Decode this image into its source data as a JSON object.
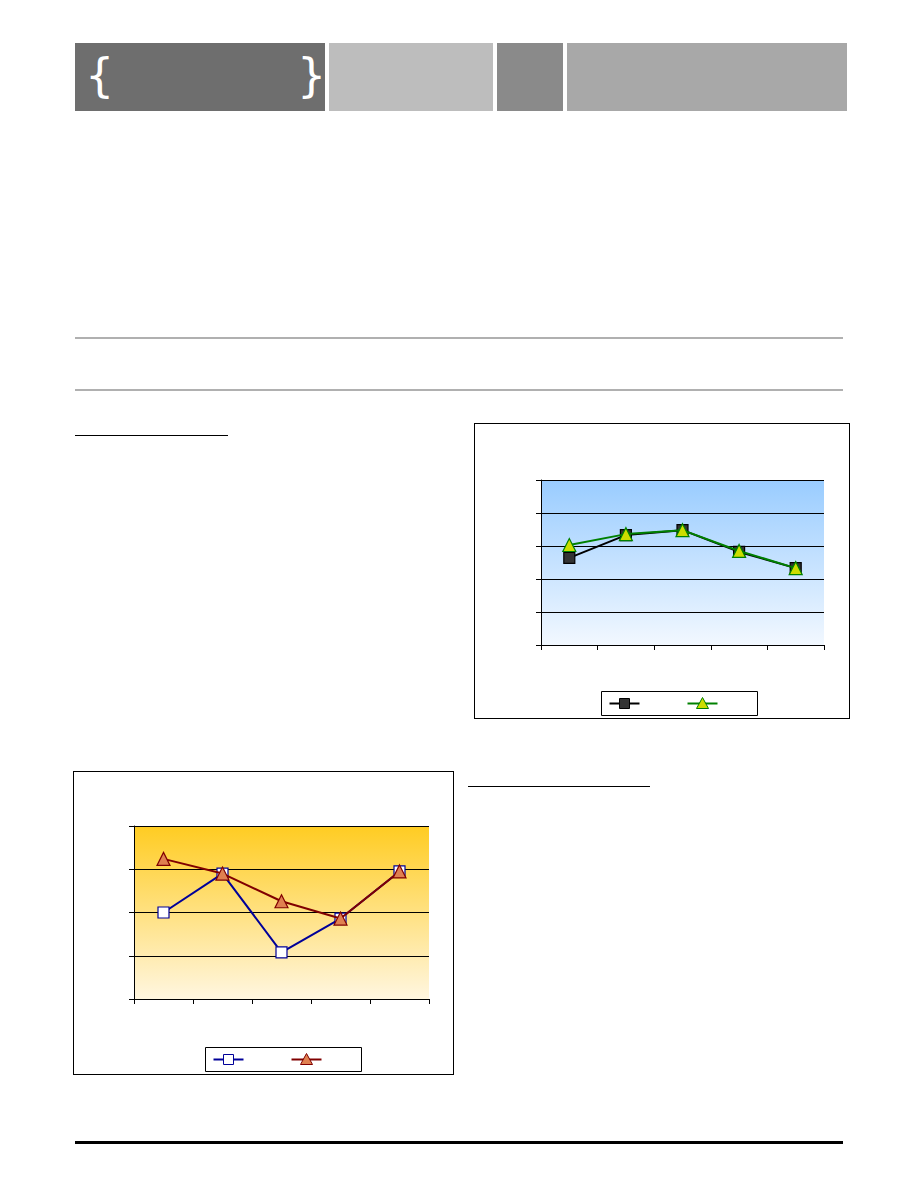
{
  "header": {
    "brace_open": "{",
    "brace_close": "}"
  },
  "chart_data": [
    {
      "type": "line",
      "categories": [
        null,
        null,
        null,
        null,
        null
      ],
      "series": [
        {
          "color": "#000000",
          "marker": "square",
          "values": [
            2.64,
            3.33,
            3.48,
            2.82,
            2.33
          ]
        },
        {
          "color": "#008000",
          "marker": "triangle",
          "values": [
            3.03,
            3.36,
            3.48,
            2.85,
            2.33
          ]
        }
      ],
      "ylim": [
        0,
        5
      ],
      "yticks": [
        0,
        1,
        2,
        3,
        4,
        5
      ],
      "grid": true,
      "legend": "bottom",
      "tick_labels": false
    },
    {
      "type": "line",
      "categories": [
        null,
        null,
        null,
        null,
        null
      ],
      "series": [
        {
          "color": "#000099",
          "marker": "square",
          "values": [
            2.0,
            2.9,
            1.08,
            1.86,
            2.95
          ]
        },
        {
          "color": "#800000",
          "marker": "triangle",
          "values": [
            3.24,
            2.9,
            2.26,
            1.86,
            2.95
          ]
        }
      ],
      "ylim": [
        0,
        4
      ],
      "yticks": [
        0,
        1,
        2,
        3,
        4
      ],
      "grid": true,
      "legend": "bottom",
      "tick_labels": false
    }
  ]
}
